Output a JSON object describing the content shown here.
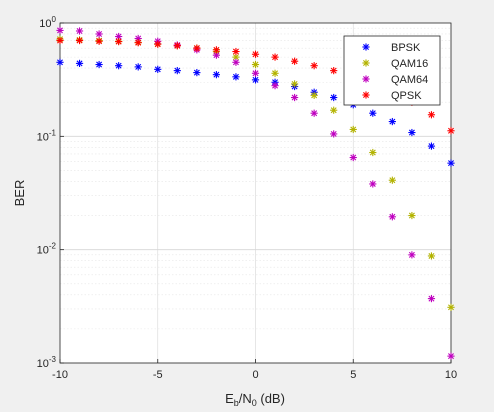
{
  "chart_data": {
    "type": "scatter",
    "xlabel_main": "E",
    "xlabel_sub1": "b",
    "xlabel_mid": "/N",
    "xlabel_sub2": "0",
    "xlabel_tail": " (dB)",
    "ylabel": "BER",
    "xlim": [
      -10,
      10
    ],
    "ylim": [
      0.001,
      1
    ],
    "yscale": "log",
    "grid": true,
    "legend_position": "top-right",
    "marker": "asterisk",
    "x_ticks": [
      -10,
      -5,
      0,
      5,
      10
    ],
    "x_tick_labels": [
      "-10",
      "-5",
      "0",
      "5",
      "10"
    ],
    "y_tick_exponents": [
      -3,
      -2,
      -1,
      0
    ],
    "y_tick_base": "10",
    "x": [
      -10,
      -9,
      -8,
      -7,
      -6,
      -5,
      -4,
      -3,
      -2,
      -1,
      0,
      1,
      2,
      3,
      4,
      5,
      6,
      7,
      8,
      9,
      10
    ],
    "series": [
      {
        "name": "BPSK",
        "color": "#0000ff",
        "values": [
          0.45,
          0.44,
          0.43,
          0.42,
          0.41,
          0.39,
          0.38,
          0.365,
          0.35,
          0.335,
          0.315,
          0.3,
          0.275,
          0.245,
          0.22,
          0.19,
          0.16,
          0.135,
          0.108,
          0.082,
          0.058
        ]
      },
      {
        "name": "QAM16",
        "color": "#b3b300",
        "values": [
          0.72,
          0.71,
          0.7,
          0.69,
          0.675,
          0.655,
          0.63,
          0.6,
          0.56,
          0.5,
          0.43,
          0.36,
          0.29,
          0.23,
          0.17,
          0.115,
          0.072,
          0.041,
          0.02,
          0.0088,
          0.0031
        ]
      },
      {
        "name": "QAM64",
        "color": "#bf00bf",
        "values": [
          0.86,
          0.85,
          0.8,
          0.76,
          0.73,
          0.69,
          0.64,
          0.58,
          0.52,
          0.45,
          0.36,
          0.28,
          0.22,
          0.16,
          0.105,
          0.065,
          0.038,
          0.0195,
          0.009,
          0.0037,
          0.00115
        ]
      },
      {
        "name": "QPSK",
        "color": "#ff0000",
        "values": [
          0.7,
          0.7,
          0.69,
          0.685,
          0.67,
          0.65,
          0.63,
          0.6,
          0.58,
          0.56,
          0.53,
          0.5,
          0.46,
          0.42,
          0.38,
          0.34,
          0.295,
          0.25,
          0.2,
          0.155,
          0.112
        ]
      }
    ]
  }
}
